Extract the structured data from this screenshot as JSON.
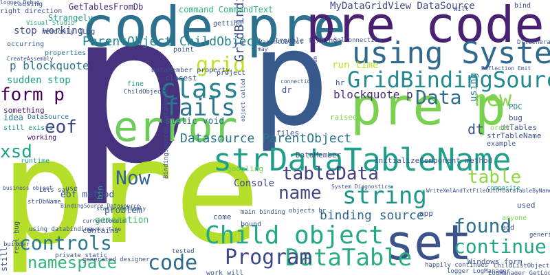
{
  "word_cloud": {
    "words": [
      {
        "text": "p",
        "color": "#46327e"
      },
      {
        "text": "pre",
        "color": "#b5de2b"
      },
      {
        "text": "p",
        "color": "#38598c"
      },
      {
        "text": "code pre",
        "color": "#2c728e"
      },
      {
        "text": "pre code",
        "color": "#482173"
      },
      {
        "text": "pre p",
        "color": "#7ad151"
      },
      {
        "text": "set",
        "color": "#3b528b"
      },
      {
        "text": "error",
        "color": "#6ccd5a"
      },
      {
        "text": "strDataTableName",
        "color": "#1f9e89"
      },
      {
        "text": "using System",
        "color": "#31688e"
      },
      {
        "text": "Child object",
        "color": "#22a884"
      },
      {
        "text": "DataTable",
        "color": "#27ad81"
      },
      {
        "text": "GridBindingSource",
        "color": "#23898e"
      },
      {
        "text": "Program",
        "color": "#3e4989"
      },
      {
        "text": "string",
        "color": "#1f988b"
      },
      {
        "text": "class",
        "color": "#26828e"
      },
      {
        "text": "fails",
        "color": "#2a788e"
      },
      {
        "text": "found",
        "color": "#2d708e"
      },
      {
        "text": "controls",
        "color": "#297b8e"
      },
      {
        "text": "tableData",
        "color": "#433e85"
      },
      {
        "text": "continue",
        "color": "#21a685"
      },
      {
        "text": "Now",
        "color": "#33638d"
      },
      {
        "text": "new",
        "color": "#84d44b"
      },
      {
        "text": "name",
        "color": "#3f4788"
      },
      {
        "text": "code",
        "color": "#2f6c8e"
      },
      {
        "text": "namespace",
        "color": "#32b67a"
      },
      {
        "text": "form p",
        "color": "#440154"
      },
      {
        "text": "table",
        "color": "#90d743"
      },
      {
        "text": "Data",
        "color": "#2e6e8e"
      },
      {
        "text": "grid",
        "color": "#c0df25"
      },
      {
        "text": "eof",
        "color": "#414487"
      },
      {
        "text": "xsd",
        "color": "#1fa088"
      },
      {
        "text": "Datasource ParentObject",
        "color": "#2a768e"
      },
      {
        "text": "binding source",
        "color": "#306a8e"
      },
      {
        "text": "ParentObject ChildObject",
        "color": "#25858e"
      },
      {
        "text": "GridBindingSource code",
        "color": "#3c4f8a"
      },
      {
        "text": "p blockquote",
        "color": "#2c738e"
      },
      {
        "text": "blockquote p",
        "color": "#472d7b"
      },
      {
        "text": "stop working",
        "color": "#3d4e8a"
      },
      {
        "text": "sudden stop",
        "color": "#1fa187"
      },
      {
        "text": "eof method",
        "color": "#3a548c"
      },
      {
        "text": "generation",
        "color": "#4ac16d"
      },
      {
        "text": "problem",
        "color": "#34608d"
      },
      {
        "text": "Console",
        "color": "#3f4889"
      },
      {
        "text": "using",
        "color": "#287d8e"
      },
      {
        "text": "dt",
        "color": "#3b518b"
      },
      {
        "text": "static void",
        "color": "#2d718e"
      },
      {
        "text": "run time",
        "color": "#c2df23"
      },
      {
        "text": "command CommandText",
        "color": "#2db27d"
      },
      {
        "text": "MyDataGridView DataSource",
        "color": "#3e4a89"
      },
      {
        "text": "GetTablesFromDb",
        "color": "#482576"
      },
      {
        "text": "Strangely",
        "color": "#1e9b8a"
      },
      {
        "text": "idea",
        "color": "#26828e"
      },
      {
        "text": "something",
        "color": "#471063"
      },
      {
        "text": "DataSource",
        "color": "#2c728e"
      },
      {
        "text": "still exists",
        "color": "#1f948c"
      },
      {
        "text": "working",
        "color": "#471365"
      },
      {
        "text": "runtime",
        "color": "#1fa088"
      },
      {
        "text": "properties",
        "color": "#2c728e"
      },
      {
        "text": "occurring",
        "color": "#365d8d"
      },
      {
        "text": "getting",
        "color": "#3b528b"
      },
      {
        "text": "bind",
        "color": "#414487"
      },
      {
        "text": "causing",
        "color": "#3b528b"
      },
      {
        "text": "right direction",
        "color": "#3b528b"
      },
      {
        "text": "Visual Studio",
        "color": "#26ad81"
      },
      {
        "text": "strDbName",
        "color": "#3b528b"
      },
      {
        "text": "point",
        "color": "#3b528b"
      },
      {
        "text": "fine",
        "color": "#1f968b"
      },
      {
        "text": "closest",
        "color": "#3b528b"
      },
      {
        "text": "project",
        "color": "#3b528b"
      },
      {
        "text": "dr",
        "color": "#3b528b"
      },
      {
        "text": "hr",
        "color": "#3b528b"
      },
      {
        "text": "PDC",
        "color": "#23898e"
      },
      {
        "text": "bug",
        "color": "#3b528b"
      },
      {
        "text": "dtTables",
        "color": "#3b528b"
      },
      {
        "text": "strTableName",
        "color": "#3b528b"
      },
      {
        "text": "example",
        "color": "#3b528b"
      },
      {
        "text": "order",
        "color": "#7ad151"
      },
      {
        "text": "files",
        "color": "#3b528b"
      },
      {
        "text": "raised",
        "color": "#7ad151"
      },
      {
        "text": "DataMember",
        "color": "#3b528b"
      },
      {
        "text": "InitializeComponent method",
        "color": "#3b528b"
      },
      {
        "text": "Lets say",
        "color": "#3b528b"
      },
      {
        "text": "builder",
        "color": "#3b528b"
      },
      {
        "text": "use",
        "color": "#3b528b"
      },
      {
        "text": "bin",
        "color": "#22a884"
      },
      {
        "text": "contains",
        "color": "#3b528b"
      },
      {
        "text": "come",
        "color": "#3b528b"
      },
      {
        "text": "bound",
        "color": "#3b528b"
      },
      {
        "text": "main binding",
        "color": "#3b528b"
      },
      {
        "text": "objects br",
        "color": "#3b528b"
      },
      {
        "text": "app",
        "color": "#3b528b"
      },
      {
        "text": "anyone",
        "color": "#7ad151"
      },
      {
        "text": "add",
        "color": "#3b528b"
      },
      {
        "text": "used",
        "color": "#3b528b"
      },
      {
        "text": "composite",
        "color": "#22a884"
      },
      {
        "text": "generic list",
        "color": "#3b528b"
      },
      {
        "text": "real bug",
        "color": "#3b528b"
      },
      {
        "text": "still",
        "color": "#3b528b"
      },
      {
        "text": "googling",
        "color": "#6ccd5a"
      },
      {
        "text": "DllGenerator",
        "color": "#3b528b"
      },
      {
        "text": "Windows form",
        "color": "#3b528b"
      },
      {
        "text": "ChildListObject",
        "color": "#3b528b"
      },
      {
        "text": "tested",
        "color": "#3b528b"
      },
      {
        "text": "work will",
        "color": "#3b528b"
      },
      {
        "text": "private static",
        "color": "#3b528b"
      },
      {
        "text": "generated designer",
        "color": "#3b528b"
      },
      {
        "text": "happily continues",
        "color": "#3b528b"
      },
      {
        "text": "logger LogManager",
        "color": "#3b528b"
      },
      {
        "text": "LogManager GetLogger",
        "color": "#3b528b"
      },
      {
        "text": "using databinding",
        "color": "#3b528b"
      },
      {
        "text": "System Diagnostics",
        "color": "#3b528b"
      },
      {
        "text": "WriteXmlAndTxtFileOutOfDataTableByName",
        "color": "#3b528b"
      },
      {
        "text": "BindingSourceB DataMember",
        "color": "#3b528b"
      },
      {
        "text": "static readonly",
        "color": "#3b528b"
      },
      {
        "text": "DataMember property",
        "color": "#3b528b"
      },
      {
        "text": "ParentObject",
        "color": "#3b528b"
      },
      {
        "text": "SqlConnection",
        "color": "#3b528b"
      },
      {
        "text": "Reflection Emit",
        "color": "#3b528b"
      },
      {
        "text": "business object",
        "color": "#3b528b"
      },
      {
        "text": "BindingSource Datasource",
        "color": "#3b528b"
      },
      {
        "text": "works fine",
        "color": "#3b528b"
      },
      {
        "text": "currentDomain",
        "color": "#3b528b"
      },
      {
        "text": "CreateAssembly",
        "color": "#3b528b"
      },
      {
        "text": "readonly ILog",
        "color": "#3b528b"
      },
      {
        "text": "ChildObject",
        "color": "#3b528b"
      },
      {
        "text": "connection",
        "color": "#3b528b"
      },
      {
        "text": "lt System",
        "color": "#3b528b"
      },
      {
        "text": "object called",
        "color": "#3b528b"
      },
      {
        "text": "trouble finding",
        "color": "#3b528b"
      },
      {
        "text": "may",
        "color": "#3b528b"
      },
      {
        "text": "will",
        "color": "#3b528b"
      },
      {
        "text": "logger Debug",
        "color": "#3b528b"
      }
    ]
  }
}
